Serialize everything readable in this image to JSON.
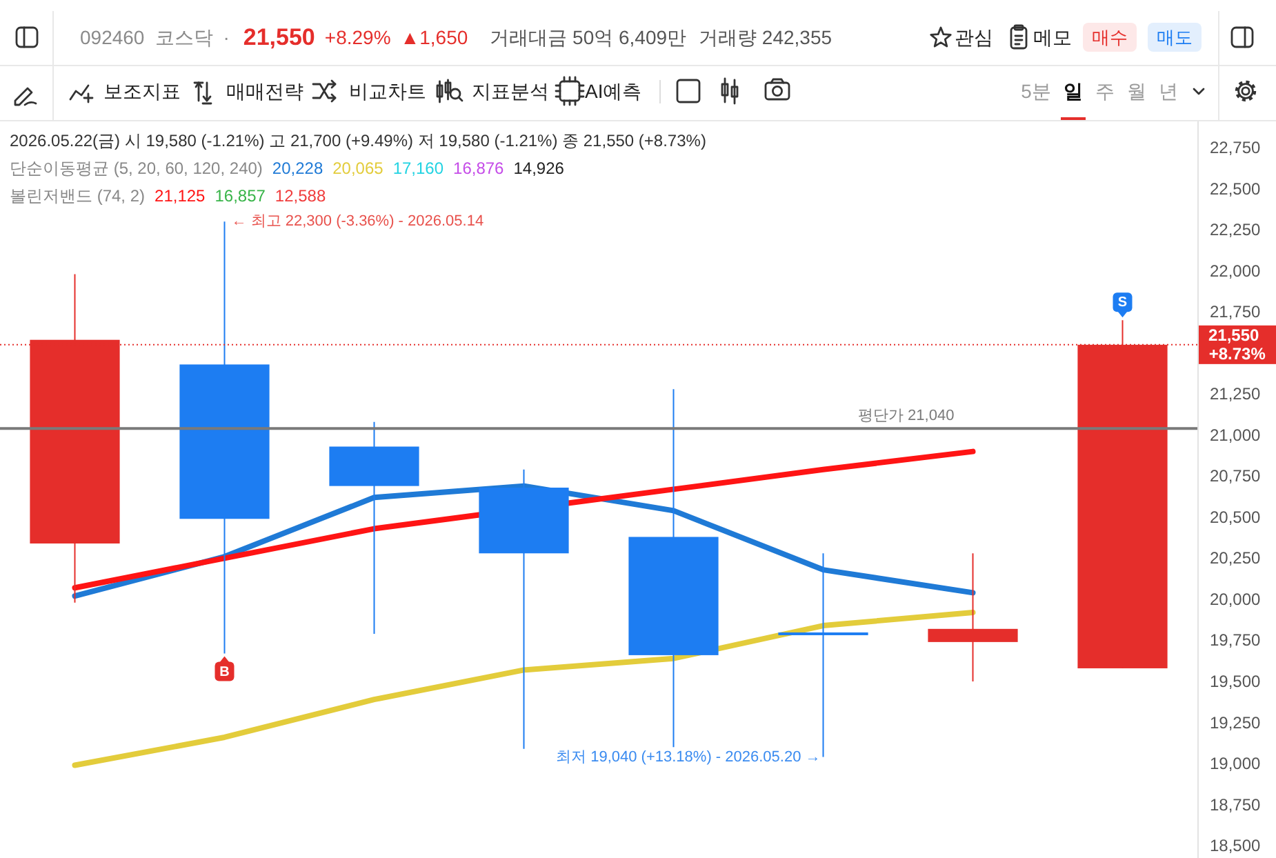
{
  "chart_data": {
    "type": "candlestick",
    "categories": [
      null,
      null,
      null,
      null,
      null,
      null,
      null,
      null
    ],
    "ohlc": [
      [
        20340,
        21980,
        19980,
        21580
      ],
      [
        21430,
        22300,
        19670,
        20490
      ],
      [
        20930,
        21080,
        19790,
        20690
      ],
      [
        20680,
        20790,
        19090,
        20280
      ],
      [
        20380,
        21280,
        19100,
        19660
      ],
      [
        19790,
        20280,
        19040,
        19790
      ],
      [
        19740,
        20280,
        19500,
        19820
      ],
      [
        19580,
        21700,
        19580,
        21550
      ]
    ],
    "colors": [
      "#e52e2b",
      "#1d7df2",
      "#1d7df2",
      "#1d7df2",
      "#1d7df2",
      "#1d7df2",
      "#e52e2b",
      "#e52e2b"
    ],
    "series": [
      {
        "type": "line",
        "name": "20,228",
        "color": "#1f7ad6",
        "values": [
          20020,
          20260,
          20620,
          20690,
          20540,
          20180,
          20040,
          null
        ]
      },
      {
        "type": "line",
        "name": "20,065",
        "color": "#e3cc3b",
        "values": [
          18990,
          19160,
          19390,
          19570,
          19640,
          19840,
          19920,
          null
        ]
      },
      {
        "type": "line",
        "name": "17,160",
        "color": "#22d3e2",
        "values": [
          null,
          null,
          null,
          null,
          null,
          null,
          null,
          null
        ]
      },
      {
        "type": "line",
        "name": "16,876",
        "color": "#c54ce8",
        "values": [
          null,
          null,
          null,
          null,
          null,
          null,
          null,
          null
        ]
      },
      {
        "type": "line",
        "name": "14,926",
        "color": "#222222",
        "values": [
          null,
          null,
          null,
          null,
          null,
          null,
          null,
          null
        ]
      },
      {
        "type": "line",
        "name": "21,125",
        "color": "#ff1414",
        "values": [
          20070,
          20250,
          20430,
          null,
          20670,
          20790,
          20900,
          null
        ]
      },
      {
        "type": "line",
        "name": "16,857",
        "color": "#38b449",
        "values": [
          null,
          null,
          null,
          null,
          null,
          null,
          null,
          null
        ]
      },
      {
        "type": "line",
        "name": "12,588",
        "color": "#f03c3c",
        "values": [
          null,
          null,
          null,
          null,
          null,
          null,
          null,
          null
        ]
      }
    ],
    "ylim": [
      18425,
      22910
    ],
    "yticks": [
      {
        "value": 18500,
        "label": "18,500"
      },
      {
        "value": 18750,
        "label": "18,750"
      },
      {
        "value": 19000,
        "label": "19,000"
      },
      {
        "value": 19250,
        "label": "19,250"
      },
      {
        "value": 19500,
        "label": "19,500"
      },
      {
        "value": 19750,
        "label": "19,750"
      },
      {
        "value": 20000,
        "label": "20,000"
      },
      {
        "value": 20250,
        "label": "20,250"
      },
      {
        "value": 20500,
        "label": "20,500"
      },
      {
        "value": 20750,
        "label": "20,750"
      },
      {
        "value": 21000,
        "label": "21,000"
      },
      {
        "value": 21250,
        "label": "21,250"
      },
      {
        "value": 21750,
        "label": "21,750"
      },
      {
        "value": 22000,
        "label": "22,000"
      },
      {
        "value": 22250,
        "label": "22,250"
      },
      {
        "value": 22500,
        "label": "22,500"
      },
      {
        "value": 22750,
        "label": "22,750"
      }
    ],
    "tick_labels": "y",
    "ref_lines": [
      {
        "axis": "y",
        "value": 21550,
        "color": "#e52e2b",
        "line_style": "dotted"
      },
      {
        "axis": "y",
        "value": 21040,
        "color": "#7a7a7a",
        "line_style": "solid"
      }
    ],
    "legend": "top left",
    "annotations": [
      "092460",
      "코스닥",
      "·",
      "21,550",
      "+8.29%",
      "▲1,650",
      "거래대금 50억 6,409만",
      "거래량 242,355",
      "관심",
      "메모",
      "매수",
      "매도",
      "보조지표",
      "매매전략",
      "비교차트",
      "지표분석",
      "AI예측",
      "5분",
      "일",
      "주",
      "월",
      "년",
      "2026.05.22(금) 시 19,580 (-1.21%) 고 21,700 (+9.49%) 저 19,580 (-1.21%) 종 21,550 (+8.73%)",
      "단순이동평균 (5, 20, 60, 120, 240)",
      "볼린저밴드 (74, 2)",
      "← 최고 22,300 (-3.36%) - 2026.05.14",
      "최저 19,040 (+13.18%) - 2026.05.20 →",
      "21,550 +8.73%",
      {
        "text": "평단가 21,040",
        "y": 21040
      },
      {
        "text": "B",
        "y": 19670
      },
      {
        "text": "S",
        "y": 21700
      }
    ]
  }
}
